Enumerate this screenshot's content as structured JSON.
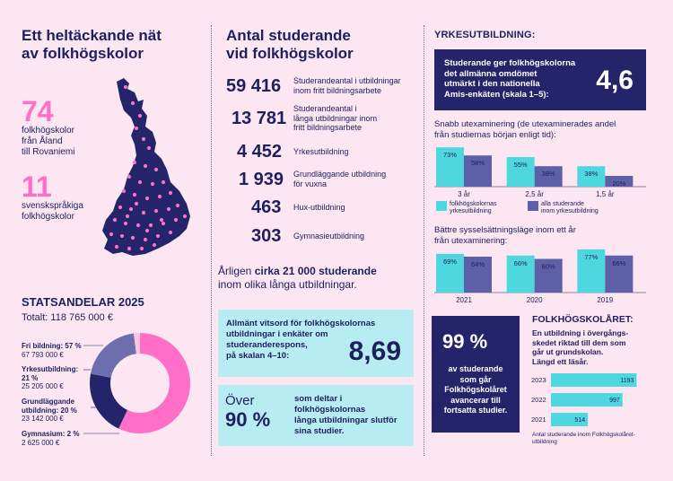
{
  "left": {
    "title_line1": "Ett heltäckande nät",
    "title_line2": "av folkhögskolor",
    "stat1_value": "74",
    "stat1_label": [
      "folkhögskolor",
      "från Åland",
      "till Rovaniemi"
    ],
    "stat2_value": "11",
    "stat2_label": [
      "svenskspråkiga",
      "folkhögskolor"
    ]
  },
  "statsandelar": {
    "title": "STATSANDELAR 2025",
    "total": "Totalt: 118 765 000 €",
    "items": [
      {
        "label": "Fri bildning: 57 %",
        "amount": "67 793 000 €"
      },
      {
        "label_line1": "Yrkesutbildning:",
        "label_line2": "21 %",
        "amount": "25 205 000 €"
      },
      {
        "label_line1": "Grundläggande",
        "label_line2": "utbildning: 20 %",
        "amount": "23 142 000 €"
      },
      {
        "label": "Gymnasium: 2 %",
        "amount": "2 625 000 €"
      }
    ]
  },
  "middle": {
    "title_line1": "Antal studerande",
    "title_line2": "vid folkhögskolor",
    "stats": [
      {
        "value": "59 416",
        "label": [
          "Studerandeantal i utbildningar",
          "inom fritt bildningsarbete"
        ]
      },
      {
        "value": "13 781",
        "label": [
          "Studerandeantal i",
          "långa utbildningar inom",
          "fritt bildningsarbete"
        ]
      },
      {
        "value": "4 452",
        "label": [
          "Yrkesutbildning"
        ]
      },
      {
        "value": "1 939",
        "label": [
          "Grundläggande utbildning",
          "för vuxna"
        ]
      },
      {
        "value": "463",
        "label": [
          "Hux-utbildning"
        ]
      },
      {
        "value": "303",
        "label": [
          "Gymnasieutbildning"
        ]
      }
    ],
    "annual_line1_pre": "Årligen ",
    "annual_line1_bold": "cirka 21 000 studerande",
    "annual_line2": "inom olika långa utbildningar.",
    "vitsord_text": [
      "Allmänt vitsord för folkhögskolornas",
      "utbildningar i enkäter om",
      "studeranderespons,",
      "på skalan 4–10:"
    ],
    "vitsord_value": "8,69",
    "over_label": "Över",
    "over_value": "90 %",
    "over_text": [
      "som deltar i",
      "folkhögskolornas",
      "långa utbildningar slutför",
      "sina studier."
    ]
  },
  "yrkes": {
    "title": "YRKESUTBILDNING:",
    "amis_text": [
      "Studerande ger folkhögskolorna",
      "det allmänna omdömet",
      "utmärkt i den nationella",
      "Amis-enkäten (skala 1–5):"
    ],
    "amis_value": "4,6",
    "chart1_title": [
      "Snabb utexaminering (de utexaminerades andel",
      "från studiernas början enligt tid):"
    ],
    "chart2_title": [
      "Bättre sysselsättningsläge inom ett år",
      "från utexaminering:"
    ],
    "legend": [
      {
        "label": [
          "folkhögskolornas",
          "yrkesutbildning"
        ],
        "color": "#4fd7df"
      },
      {
        "label": [
          "alla studerande",
          "inom yrkesutbildning"
        ],
        "color": "#5d5fa7"
      }
    ]
  },
  "fhsaret": {
    "pct": "99 %",
    "pct_text": [
      "av studerande",
      "som går",
      "Folkhögskolåret",
      "avancerar till",
      "fortsatta studier."
    ],
    "title": "FOLKHÖGSKOLÅRET:",
    "desc": [
      "En utbildning i övergångs-",
      "skedet riktad till dem som",
      "går ut grundskolan.",
      "Längd ett läsår."
    ],
    "caption": [
      "Antal studerande inom Folkhögskolåret-",
      "utbildning"
    ]
  },
  "chart_data": [
    {
      "type": "pie",
      "title": "STATSANDELAR 2025",
      "categories": [
        "Fri bildning",
        "Yrkesutbildning",
        "Grundläggande utbildning",
        "Gymnasium"
      ],
      "values": [
        57,
        21,
        20,
        2
      ],
      "colors": [
        "#ff6ec7",
        "#24246a",
        "#6c6ead",
        "#f6c6e2"
      ]
    },
    {
      "type": "bar",
      "categories": [
        "3 år",
        "2,5 år",
        "1,5 år"
      ],
      "series": [
        {
          "name": "folkhögskolornas yrkesutbildning",
          "values": [
            73,
            55,
            38
          ],
          "labels": [
            "73%",
            "55%",
            "38%"
          ],
          "color": "#4fd7df"
        },
        {
          "name": "alla studerande inom yrkesutbildning",
          "values": [
            58,
            38,
            20
          ],
          "labels": [
            "58%",
            "38%",
            "20%"
          ],
          "color": "#5d5fa7"
        }
      ],
      "ylim": [
        0,
        100
      ]
    },
    {
      "type": "bar",
      "categories": [
        "2021",
        "2020",
        "2019"
      ],
      "series": [
        {
          "name": "folkhögskolornas yrkesutbildning",
          "values": [
            69,
            66,
            77
          ],
          "labels": [
            "69%",
            "66%",
            "77%"
          ],
          "color": "#4fd7df"
        },
        {
          "name": "alla studerande inom yrkesutbildning",
          "values": [
            64,
            60,
            66
          ],
          "labels": [
            "64%",
            "60%",
            "66%"
          ],
          "color": "#5d5fa7"
        }
      ],
      "ylim": [
        0,
        100
      ]
    },
    {
      "type": "bar",
      "orientation": "horizontal",
      "categories": [
        "2023",
        "2022",
        "2021"
      ],
      "values": [
        1193,
        997,
        514
      ],
      "color": "#4fd7df",
      "xlim": [
        0,
        1200
      ]
    }
  ]
}
